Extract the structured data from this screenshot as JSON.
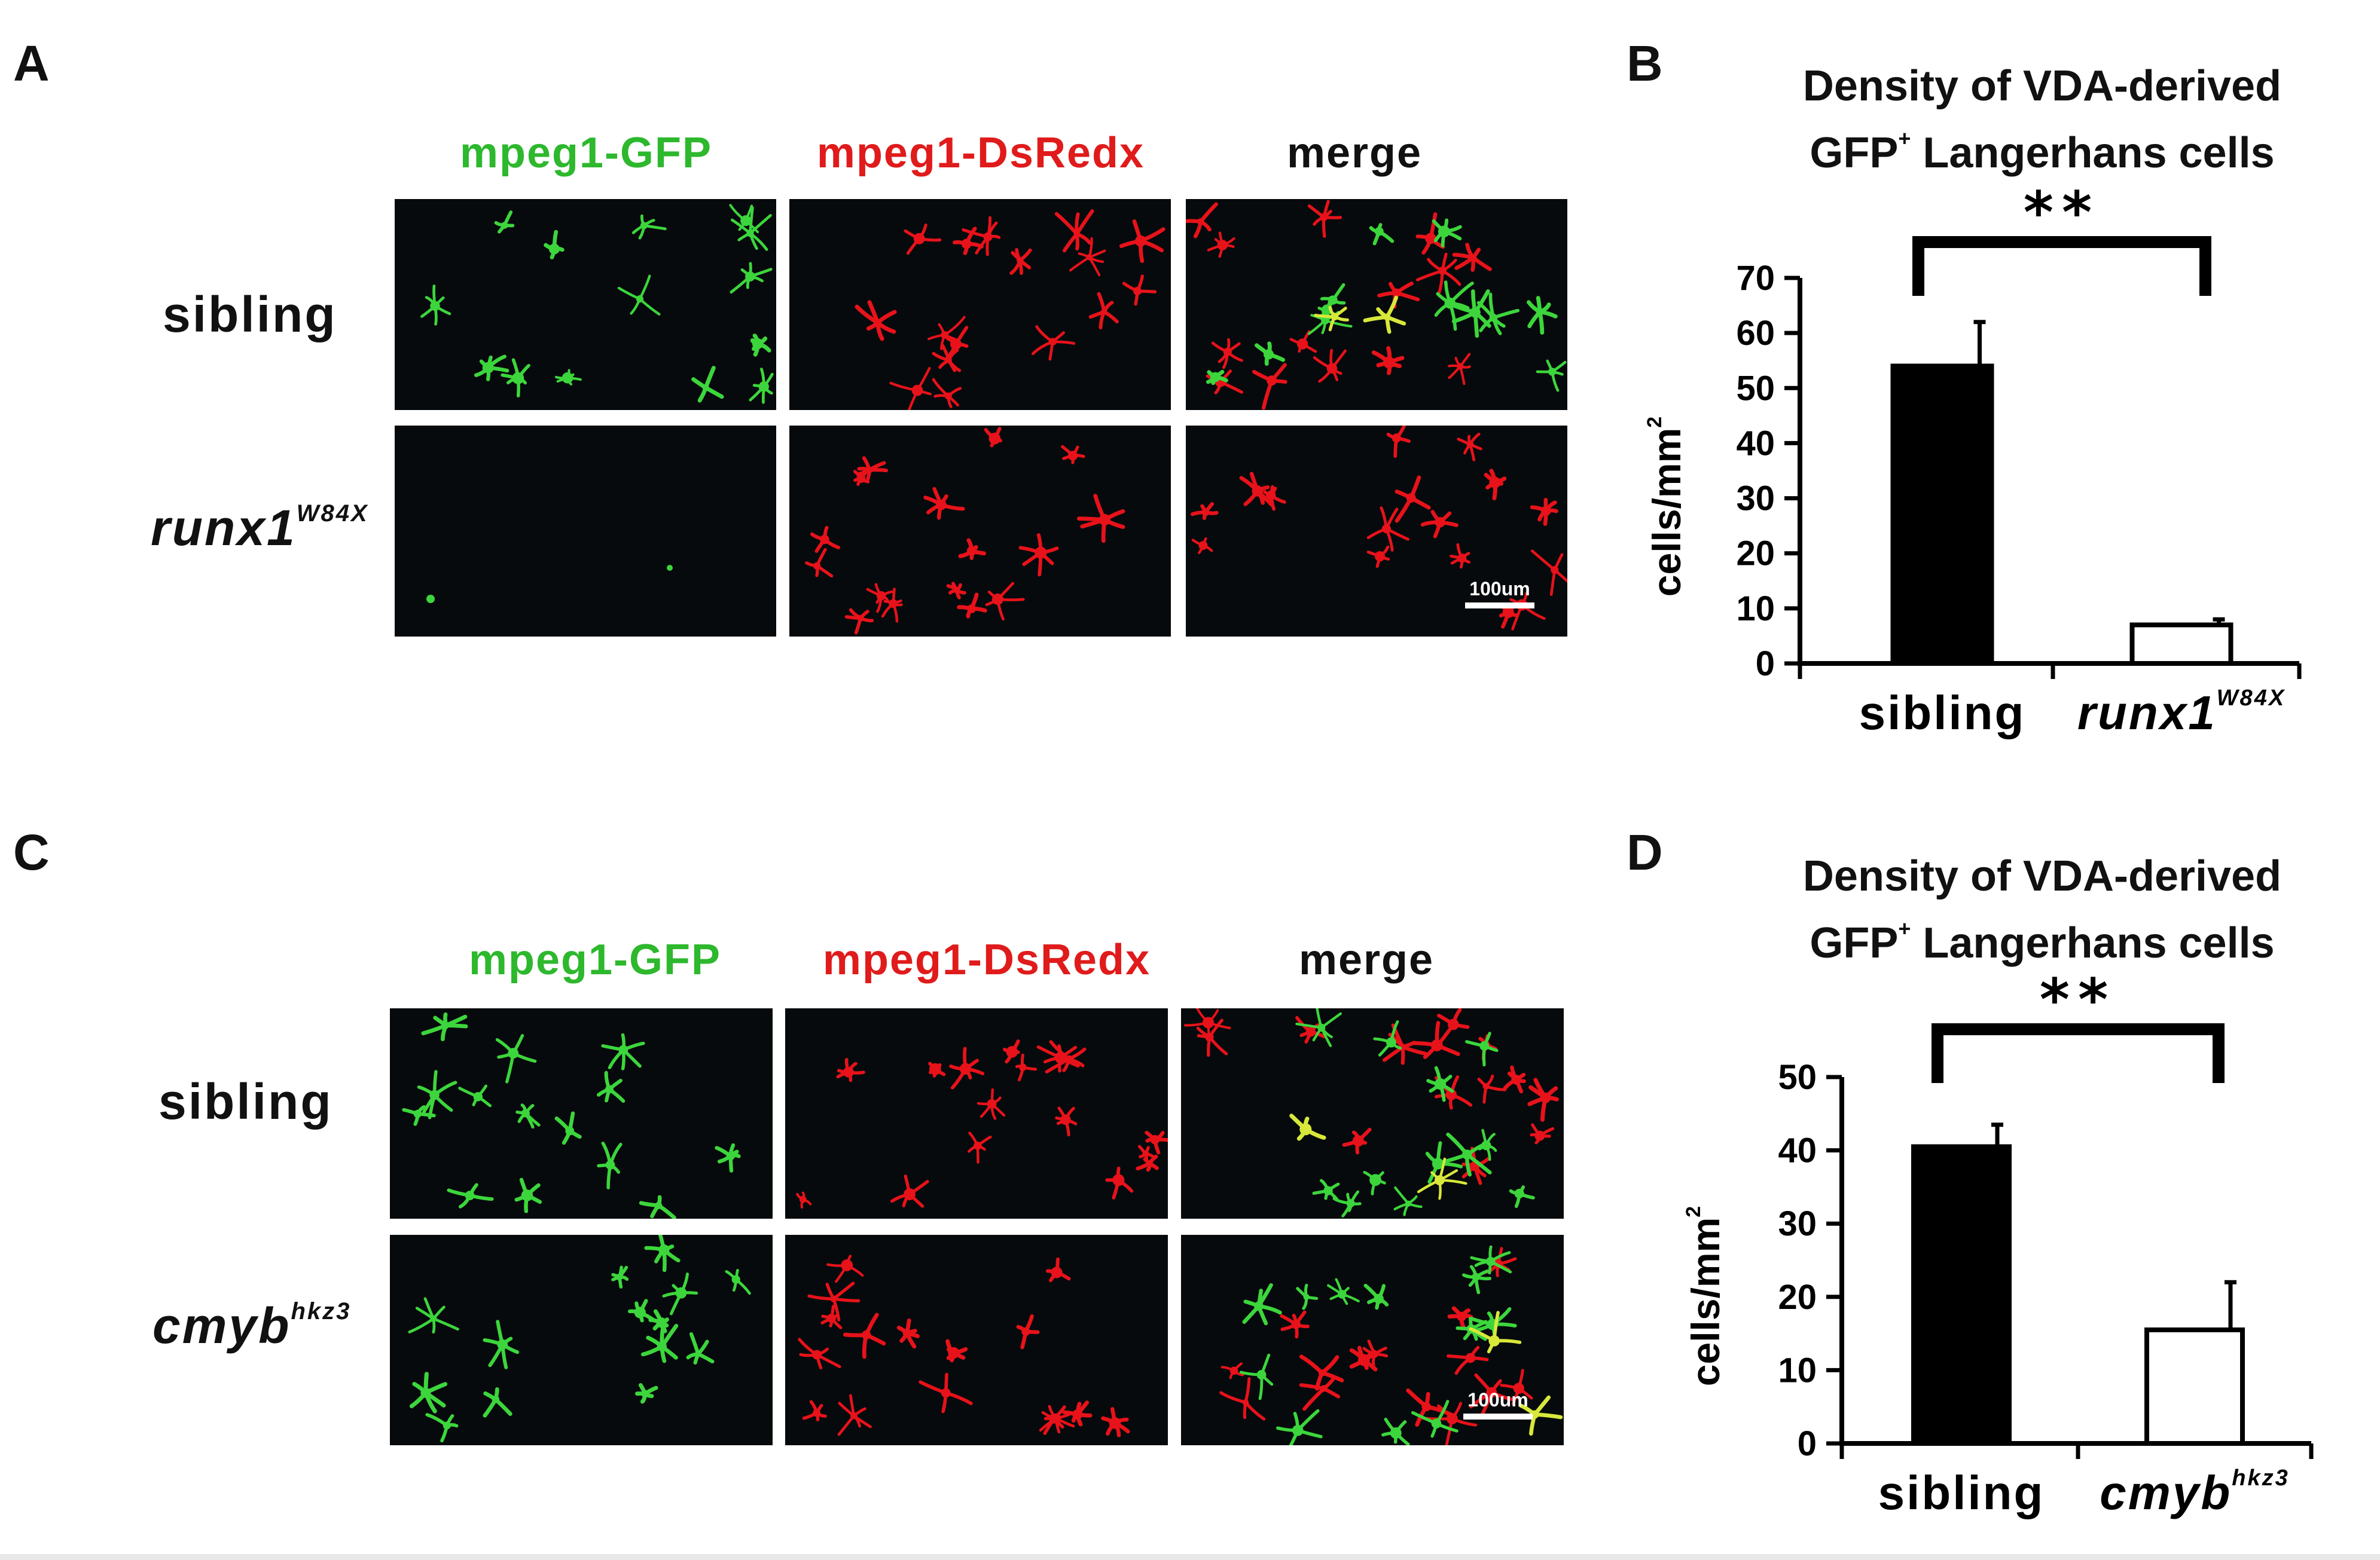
{
  "panels": {
    "A": {
      "letter": "A",
      "columns": [
        "mpeg1-GFP",
        "mpeg1-DsRedx",
        "merge"
      ],
      "column_colors": [
        "#2db82d",
        "#e01b1b",
        "#111111"
      ],
      "rows": [
        {
          "label": "sibling",
          "sup": ""
        },
        {
          "label": "runx1",
          "sup": "W84X"
        }
      ],
      "scale_bar": "100um"
    },
    "C": {
      "letter": "C",
      "columns": [
        "mpeg1-GFP",
        "mpeg1-DsRedx",
        "merge"
      ],
      "column_colors": [
        "#2db82d",
        "#e01b1b",
        "#111111"
      ],
      "rows": [
        {
          "label": "sibling",
          "sup": ""
        },
        {
          "label": "cmyb",
          "sup": "hkz3"
        }
      ],
      "scale_bar": "100um"
    },
    "B": {
      "letter": "B",
      "title_line1": "Density of VDA-derived",
      "title_line2_pre": "GFP",
      "title_line2_sup": "+",
      "title_line2_post": " Langerhans cells"
    },
    "D": {
      "letter": "D",
      "title_line1": "Density of VDA-derived",
      "title_line2_pre": "GFP",
      "title_line2_sup": "+",
      "title_line2_post": " Langerhans cells"
    }
  },
  "chart_data": [
    {
      "type": "bar",
      "panel": "B",
      "title": "Density of VDA-derived GFP+ Langerhans cells",
      "ylabel": "cells/mm",
      "ylabel_sup": "2",
      "categories": [
        {
          "label": "sibling",
          "sup": "",
          "italic": false
        },
        {
          "label": "runx1",
          "sup": "W84X",
          "italic": true
        }
      ],
      "values": [
        54,
        7
      ],
      "error_upper": [
        62,
        8
      ],
      "fill": [
        "#000000",
        "#ffffff"
      ],
      "ylim": [
        0,
        70
      ],
      "yticks": [
        "0",
        "10",
        "20",
        "30",
        "40",
        "50",
        "60",
        "70"
      ],
      "significance": "**"
    },
    {
      "type": "bar",
      "panel": "D",
      "title": "Density of VDA-derived GFP+ Langerhans cells",
      "ylabel": "cells/mm",
      "ylabel_sup": "2",
      "categories": [
        {
          "label": "sibling",
          "sup": "",
          "italic": false
        },
        {
          "label": "cmyb",
          "sup": "hkz3",
          "italic": true
        }
      ],
      "values": [
        40.5,
        15.5
      ],
      "error_upper": [
        43.5,
        22
      ],
      "fill": [
        "#000000",
        "#ffffff"
      ],
      "ylim": [
        0,
        50
      ],
      "yticks": [
        "0",
        "10",
        "20",
        "30",
        "40",
        "50"
      ],
      "significance": "**"
    }
  ]
}
